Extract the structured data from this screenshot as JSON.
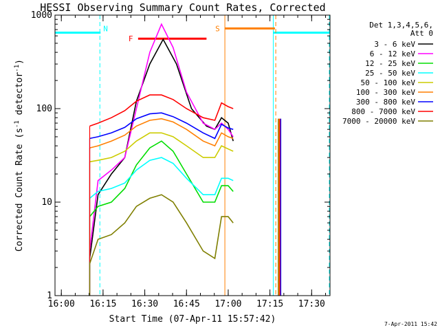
{
  "chart_data": {
    "type": "line",
    "title": "HESSI Observing Summary Count Rates, Corrected",
    "xlabel": "Start Time (07-Apr-11 15:57:42)",
    "ylabel_main": "Corrected Count Rate (s",
    "ylabel_sup1": "-1",
    "ylabel_mid": " detector",
    "ylabel_sup2": "-1",
    "ylabel_end": ")",
    "yscale": "log",
    "xlim": [
      15.962,
      17.61
    ],
    "ylim": [
      1,
      1000
    ],
    "x_ticks": [
      {
        "label": "16:00",
        "value": 16.0
      },
      {
        "label": "16:15",
        "value": 16.25
      },
      {
        "label": "16:30",
        "value": 16.5
      },
      {
        "label": "16:45",
        "value": 16.75
      },
      {
        "label": "17:00",
        "value": 17.0
      },
      {
        "label": "17:15",
        "value": 17.25
      },
      {
        "label": "17:30",
        "value": 17.5
      }
    ],
    "y_ticks": [
      {
        "label": "1",
        "value": 1
      },
      {
        "label": "10",
        "value": 10
      },
      {
        "label": "100",
        "value": 100
      },
      {
        "label": "1000",
        "value": 1000
      }
    ],
    "legend": {
      "position": "right",
      "header": [
        "Det 1,3,4,5,6,",
        "Att 0"
      ],
      "items": [
        {
          "name": "3 - 6 keV",
          "color": "#000000"
        },
        {
          "name": "6 - 12 keV",
          "color": "#ff00ff"
        },
        {
          "name": "12 - 25 keV",
          "color": "#00dd00"
        },
        {
          "name": "25 - 50 keV",
          "color": "#00ffff"
        },
        {
          "name": "50 - 100 keV",
          "color": "#cccc00"
        },
        {
          "name": "100 - 300 keV",
          "color": "#ff7f00"
        },
        {
          "name": "300 - 800 keV",
          "color": "#0000ff"
        },
        {
          "name": "800 - 7000 keV",
          "color": "#ff0000"
        },
        {
          "name": "7000 - 20000 keV",
          "color": "#7f7f00"
        }
      ]
    },
    "series": [
      {
        "name": "3 - 6 keV",
        "color": "#000000",
        "points": [
          [
            16.17,
            2.5
          ],
          [
            16.22,
            12
          ],
          [
            16.3,
            20
          ],
          [
            16.38,
            30
          ],
          [
            16.45,
            120
          ],
          [
            16.53,
            300
          ],
          [
            16.61,
            550
          ],
          [
            16.69,
            300
          ],
          [
            16.78,
            100
          ],
          [
            16.87,
            65
          ],
          [
            16.92,
            60
          ],
          [
            16.96,
            80
          ],
          [
            17.0,
            70
          ],
          [
            17.03,
            45
          ]
        ]
      },
      {
        "name": "6 - 12 keV",
        "color": "#ff00ff",
        "points": [
          [
            16.17,
            3
          ],
          [
            16.22,
            17
          ],
          [
            16.3,
            22
          ],
          [
            16.38,
            30
          ],
          [
            16.45,
            100
          ],
          [
            16.53,
            400
          ],
          [
            16.6,
            800
          ],
          [
            16.67,
            450
          ],
          [
            16.75,
            150
          ],
          [
            16.85,
            70
          ],
          [
            16.92,
            60
          ],
          [
            16.96,
            70
          ],
          [
            17.0,
            60
          ],
          [
            17.03,
            50
          ]
        ]
      },
      {
        "name": "12 - 25 keV",
        "color": "#00dd00",
        "points": [
          [
            16.17,
            7
          ],
          [
            16.22,
            9
          ],
          [
            16.3,
            10
          ],
          [
            16.38,
            14
          ],
          [
            16.45,
            25
          ],
          [
            16.53,
            38
          ],
          [
            16.6,
            45
          ],
          [
            16.67,
            35
          ],
          [
            16.75,
            20
          ],
          [
            16.85,
            10
          ],
          [
            16.92,
            10
          ],
          [
            16.96,
            15
          ],
          [
            17.0,
            15
          ],
          [
            17.03,
            13
          ]
        ]
      },
      {
        "name": "25 - 50 keV",
        "color": "#00ffff",
        "points": [
          [
            16.17,
            11
          ],
          [
            16.22,
            13
          ],
          [
            16.3,
            14
          ],
          [
            16.38,
            16
          ],
          [
            16.45,
            22
          ],
          [
            16.53,
            28
          ],
          [
            16.6,
            30
          ],
          [
            16.67,
            26
          ],
          [
            16.75,
            18
          ],
          [
            16.85,
            12
          ],
          [
            16.92,
            12
          ],
          [
            16.96,
            18
          ],
          [
            17.0,
            18
          ],
          [
            17.03,
            17
          ]
        ]
      },
      {
        "name": "50 - 100 keV",
        "color": "#cccc00",
        "points": [
          [
            16.17,
            27
          ],
          [
            16.22,
            28
          ],
          [
            16.3,
            30
          ],
          [
            16.38,
            35
          ],
          [
            16.45,
            45
          ],
          [
            16.53,
            55
          ],
          [
            16.6,
            55
          ],
          [
            16.67,
            50
          ],
          [
            16.75,
            40
          ],
          [
            16.85,
            30
          ],
          [
            16.92,
            30
          ],
          [
            16.96,
            40
          ],
          [
            17.0,
            37
          ],
          [
            17.03,
            35
          ]
        ]
      },
      {
        "name": "100 - 300 keV",
        "color": "#ff7f00",
        "points": [
          [
            16.17,
            38
          ],
          [
            16.22,
            40
          ],
          [
            16.3,
            45
          ],
          [
            16.38,
            52
          ],
          [
            16.45,
            65
          ],
          [
            16.53,
            75
          ],
          [
            16.6,
            78
          ],
          [
            16.67,
            72
          ],
          [
            16.75,
            60
          ],
          [
            16.85,
            45
          ],
          [
            16.92,
            40
          ],
          [
            16.96,
            55
          ],
          [
            17.0,
            50
          ],
          [
            17.03,
            48
          ]
        ]
      },
      {
        "name": "300 - 800 keV",
        "color": "#0000ff",
        "points": [
          [
            16.17,
            48
          ],
          [
            16.22,
            50
          ],
          [
            16.3,
            55
          ],
          [
            16.38,
            63
          ],
          [
            16.45,
            78
          ],
          [
            16.53,
            88
          ],
          [
            16.6,
            90
          ],
          [
            16.67,
            82
          ],
          [
            16.75,
            70
          ],
          [
            16.85,
            55
          ],
          [
            16.92,
            48
          ],
          [
            16.96,
            68
          ],
          [
            17.0,
            62
          ],
          [
            17.03,
            60
          ]
        ]
      },
      {
        "name": "800 - 7000 keV",
        "color": "#ff0000",
        "points": [
          [
            16.17,
            65
          ],
          [
            16.22,
            70
          ],
          [
            16.3,
            80
          ],
          [
            16.38,
            95
          ],
          [
            16.45,
            120
          ],
          [
            16.53,
            140
          ],
          [
            16.6,
            140
          ],
          [
            16.67,
            125
          ],
          [
            16.75,
            100
          ],
          [
            16.85,
            80
          ],
          [
            16.92,
            75
          ],
          [
            16.96,
            115
          ],
          [
            17.0,
            105
          ],
          [
            17.03,
            100
          ]
        ]
      },
      {
        "name": "7000 - 20000 keV",
        "color": "#7f7f00",
        "points": [
          [
            16.17,
            2.2
          ],
          [
            16.22,
            4
          ],
          [
            16.3,
            4.5
          ],
          [
            16.38,
            6
          ],
          [
            16.45,
            9
          ],
          [
            16.53,
            11
          ],
          [
            16.6,
            12
          ],
          [
            16.67,
            10
          ],
          [
            16.75,
            6
          ],
          [
            16.85,
            3
          ],
          [
            16.92,
            2.5
          ],
          [
            16.96,
            7
          ],
          [
            17.0,
            7
          ],
          [
            17.03,
            6
          ]
        ]
      }
    ],
    "late_spikes": {
      "x": 17.3,
      "top": 78,
      "colors": [
        "#7f7f00",
        "#ff7f00",
        "#ff0000",
        "#0000ff"
      ]
    },
    "flags": [
      {
        "label": "F",
        "color": "#ff0000",
        "x_start": 16.46,
        "x_end": 16.87,
        "y": 560
      },
      {
        "label": "S",
        "color": "#ff7f00",
        "x_start": 16.98,
        "x_end": 17.28,
        "y": 720
      }
    ],
    "night_intervals": [
      {
        "label": "N",
        "color": "#00ffff",
        "x_start": 15.962,
        "x_end": 16.235,
        "y": 650,
        "end_style": "dashed"
      },
      {
        "label": "",
        "color": "#00ffff",
        "x_start": 17.27,
        "x_end": 17.61,
        "y": 650,
        "start_style": "solid",
        "end_style": "dashed"
      }
    ],
    "saa_intervals": [
      {
        "color": "#ff7f00",
        "x": 16.98,
        "style": "solid"
      },
      {
        "color": "#ff7f00",
        "x": 17.285,
        "style": "dashed"
      }
    ],
    "footer_date": "7-Apr-2011 15:42"
  }
}
